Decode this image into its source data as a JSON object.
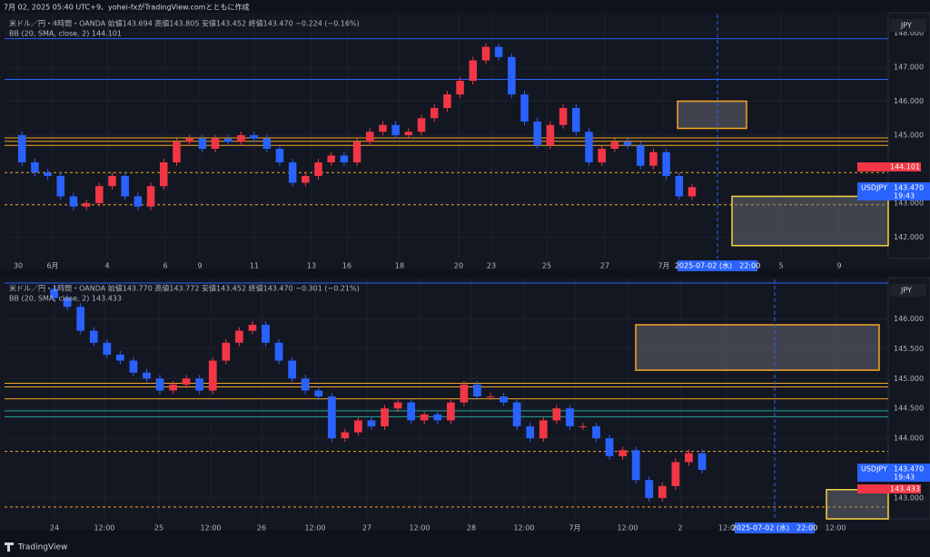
{
  "header": {
    "title": "7月 02, 2025 05:40 UTC+9、yohei-fxがTradingView.comとともに作成"
  },
  "footer": {
    "brand": "TradingView"
  },
  "panels": [
    {
      "legend": "米ドル／円・4時間・OANDA 始値143.694 高値143.805 安値143.452 終値143.470 −0.224 (−0.16%)",
      "indicator": "BB (20, SMA, close, 2) 144.101",
      "currency": "JPY",
      "symbol": "USDJPY",
      "last_price": "143.470",
      "countdown": "19:43",
      "bb_price": "144.101",
      "crosshair": "2025-07-02 (水)　22:00",
      "ylim": [
        141.37,
        148.55
      ],
      "yticks": [
        {
          "value": 148,
          "label": "148.000"
        },
        {
          "value": 147,
          "label": "147.000"
        },
        {
          "value": 146,
          "label": "146.000"
        },
        {
          "value": 145,
          "label": "145.000"
        },
        {
          "value": 143,
          "label": "143.000"
        },
        {
          "value": 142,
          "label": "142.000"
        }
      ],
      "xlabels": [
        "30",
        "6月",
        "4",
        "6",
        "9",
        "11",
        "13",
        "16",
        "18",
        "20",
        "23",
        "25",
        "27",
        "7月",
        "5",
        "9"
      ],
      "lines": [
        {
          "price": 147.84,
          "color": "#2962ff"
        },
        {
          "price": 146.64,
          "color": "#2962ff"
        },
        {
          "price": 144.92,
          "color": "#f5a623"
        },
        {
          "price": 144.82,
          "color": "#f5a623"
        },
        {
          "price": 144.7,
          "color": "#f5a623"
        }
      ],
      "dashed": [
        143.9,
        142.95
      ],
      "boxes": [
        {
          "top": 146.0,
          "bottom": 145.2,
          "color": "#f5a623"
        },
        {
          "top": 143.2,
          "bottom": 141.75,
          "color": "#f5d33d"
        }
      ],
      "closes": [
        145.0,
        144.2,
        143.9,
        143.8,
        143.2,
        142.9,
        143.0,
        143.5,
        143.8,
        143.2,
        142.9,
        143.5,
        144.2,
        144.8,
        144.9,
        144.6,
        144.9,
        144.8,
        145.0,
        144.9,
        144.6,
        144.2,
        143.6,
        143.8,
        144.2,
        144.4,
        144.2,
        144.8,
        145.1,
        145.3,
        145.0,
        145.1,
        145.5,
        145.8,
        146.2,
        146.6,
        147.2,
        147.6,
        147.3,
        146.2,
        145.4,
        144.7,
        145.3,
        145.8,
        145.1,
        144.2,
        144.6,
        144.8,
        144.7,
        144.1,
        144.5,
        143.8,
        143.2,
        143.47
      ]
    },
    {
      "legend": "米ドル／円・1時間・OANDA 始値143.770 高値143.772 安値143.452 終値143.470 −0.301 (−0.21%)",
      "indicator": "BB (20, SMA, close, 2) 143.433",
      "currency": "JPY",
      "symbol": "USDJPY",
      "last_price": "143.470",
      "countdown": "19:43",
      "bb_price": "143.433",
      "crosshair": "2025-07-02 (水)　22:00",
      "ylim": [
        142.65,
        146.66
      ],
      "yticks": [
        {
          "value": 146,
          "label": "146.000"
        },
        {
          "value": 145.5,
          "label": "145.500"
        },
        {
          "value": 145,
          "label": "145.000"
        },
        {
          "value": 144.5,
          "label": "144.500"
        },
        {
          "value": 144,
          "label": "144.000"
        },
        {
          "value": 143,
          "label": "143.000"
        }
      ],
      "xlabels": [
        "24",
        "12:00",
        "25",
        "12:00",
        "26",
        "12:00",
        "27",
        "12:00",
        "28",
        "12:00",
        "7月",
        "12:00",
        "2",
        "12:0",
        "12:00"
      ],
      "lines": [
        {
          "price": 146.6,
          "color": "#2962ff"
        },
        {
          "price": 144.92,
          "color": "#f5a623"
        },
        {
          "price": 144.86,
          "color": "#f5a623"
        },
        {
          "price": 144.66,
          "color": "#f5a623"
        },
        {
          "price": 144.46,
          "color": "#26a69a"
        },
        {
          "price": 144.36,
          "color": "#26a69a"
        }
      ],
      "dashed": [
        143.78,
        142.85
      ],
      "boxes": [
        {
          "top": 145.9,
          "bottom": 145.14,
          "color": "#f5a623"
        },
        {
          "top": 143.14,
          "bottom": 142.65,
          "color": "#f5d33d"
        }
      ],
      "closes": [
        146.5,
        146.35,
        146.2,
        145.8,
        145.6,
        145.4,
        145.3,
        145.1,
        145.0,
        144.8,
        144.9,
        145.0,
        144.8,
        145.3,
        145.6,
        145.8,
        145.9,
        145.6,
        145.3,
        145.0,
        144.8,
        144.7,
        144.0,
        144.1,
        144.3,
        144.2,
        144.5,
        144.6,
        144.3,
        144.4,
        144.3,
        144.6,
        144.9,
        144.7,
        144.7,
        144.6,
        144.2,
        144.0,
        144.3,
        144.5,
        144.2,
        144.2,
        144.0,
        143.7,
        143.8,
        143.3,
        143.0,
        143.2,
        143.6,
        143.75,
        143.47
      ]
    }
  ]
}
